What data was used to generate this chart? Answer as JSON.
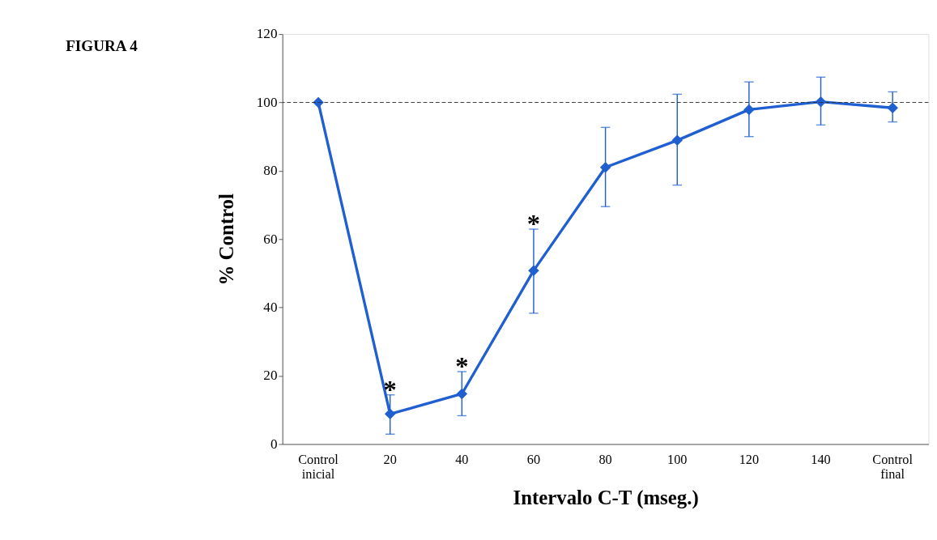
{
  "chart_data": {
    "type": "line",
    "title": "FIGURA 4",
    "xlabel": "Intervalo C-T (mseg.)",
    "ylabel": "% Control",
    "categories": [
      "Control\ninicial",
      "20",
      "40",
      "60",
      "80",
      "100",
      "120",
      "140",
      "Control\nfinal"
    ],
    "series": [
      {
        "color": "#1f5fd0",
        "values": [
          100,
          8.8,
          14.7,
          50.8,
          81,
          88.9,
          97.9,
          100.2,
          98.4
        ],
        "errors": [
          null,
          [
            2.9,
            14.4
          ],
          [
            8.3,
            21.2
          ],
          [
            38.3,
            62.9
          ],
          [
            69.5,
            92.7
          ],
          [
            75.8,
            102.4
          ],
          [
            90,
            106
          ],
          [
            93.4,
            107.4
          ],
          [
            94.3,
            103.1
          ]
        ]
      }
    ],
    "ylim": [
      0,
      120
    ],
    "yticks": [
      0,
      20,
      40,
      60,
      80,
      100,
      120
    ],
    "grid": false,
    "marker": "diamond",
    "line_style": "solid",
    "ref_lines": [
      {
        "axis": "y",
        "value": 100,
        "color": "#333333",
        "line_style": "dashed"
      }
    ],
    "annotations": [
      {
        "text": "*",
        "x": "20",
        "y": 14.4
      },
      {
        "text": "*",
        "x": "40",
        "y": 21.2
      },
      {
        "text": "*",
        "x": "60",
        "y": 62.9
      }
    ]
  }
}
